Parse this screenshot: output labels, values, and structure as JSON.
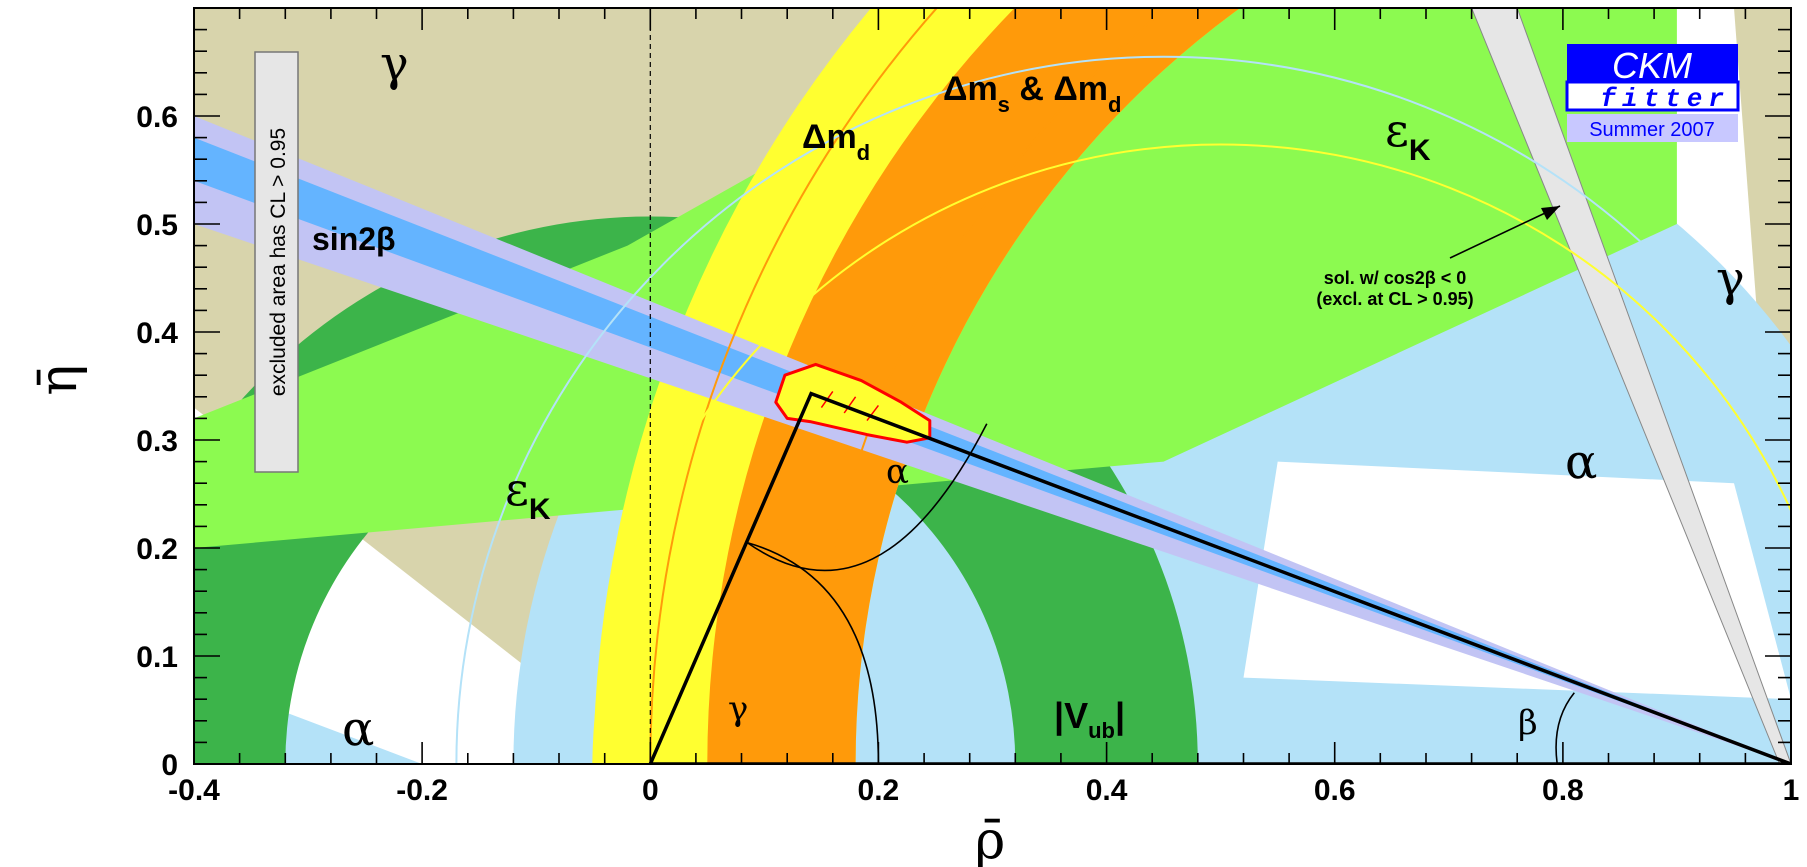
{
  "chart_data": {
    "type": "scatter",
    "xlabel": "ρ̄",
    "ylabel": "η̄",
    "xlim": [
      -0.4,
      1.0
    ],
    "ylim": [
      0.0,
      0.7
    ],
    "x_ticks": [
      "-0.4",
      "-0.2",
      "0",
      "0.2",
      "0.4",
      "0.6",
      "0.8",
      "1"
    ],
    "y_ticks": [
      "0",
      "0.1",
      "0.2",
      "0.3",
      "0.4",
      "0.5",
      "0.6"
    ],
    "grid": false,
    "apex": {
      "rho": 0.141,
      "eta": 0.343
    },
    "triangle_vertices": [
      [
        0,
        0
      ],
      [
        0.141,
        0.343
      ],
      [
        1,
        0
      ]
    ],
    "colors": {
      "gamma": "#d8d4ac",
      "alpha": "#b4e2f8",
      "epsilon_k_outer": "#3cb44a",
      "epsilon_k_inner": "#8cfa50",
      "dm_d": "#ffff30",
      "dm_s": "#ff9a0a",
      "sin2beta_outer": "#c2c4f4",
      "sin2beta_inner": "#64b4ff",
      "vub": "#3cb44a",
      "cos2beta": "#e6e6e6",
      "fit": "#ffff30",
      "fit_border": "#ff0000",
      "logo_blue": "#0000ff",
      "logo_light": "#c8c8ff"
    },
    "annotations": {
      "gamma_top": "γ",
      "gamma_right": "γ",
      "alpha_right": "α",
      "alpha_bottom": "α",
      "alpha_apex": "α",
      "beta_small": "β",
      "gamma_small": "γ",
      "sin2beta": "sin2β",
      "dm_d": "Δm",
      "dm_d_sub": "d",
      "dm_s": "Δm",
      "dm_s_sub1": "s",
      "dm_s_amp": " & Δm",
      "dm_s_sub2": "d",
      "epsK": "ε",
      "epsK_sub": "K",
      "vub": "|V",
      "vub_sub": "ub",
      "vub_end": "|",
      "excluded_note": "excluded area has CL > 0.95",
      "cos2beta_line1": "sol. w/ cos2β < 0",
      "cos2beta_line2": "(excl. at CL > 0.95)"
    },
    "logo": {
      "line1": "CKM",
      "line2": "fitter",
      "line3": "Summer 2007"
    }
  }
}
